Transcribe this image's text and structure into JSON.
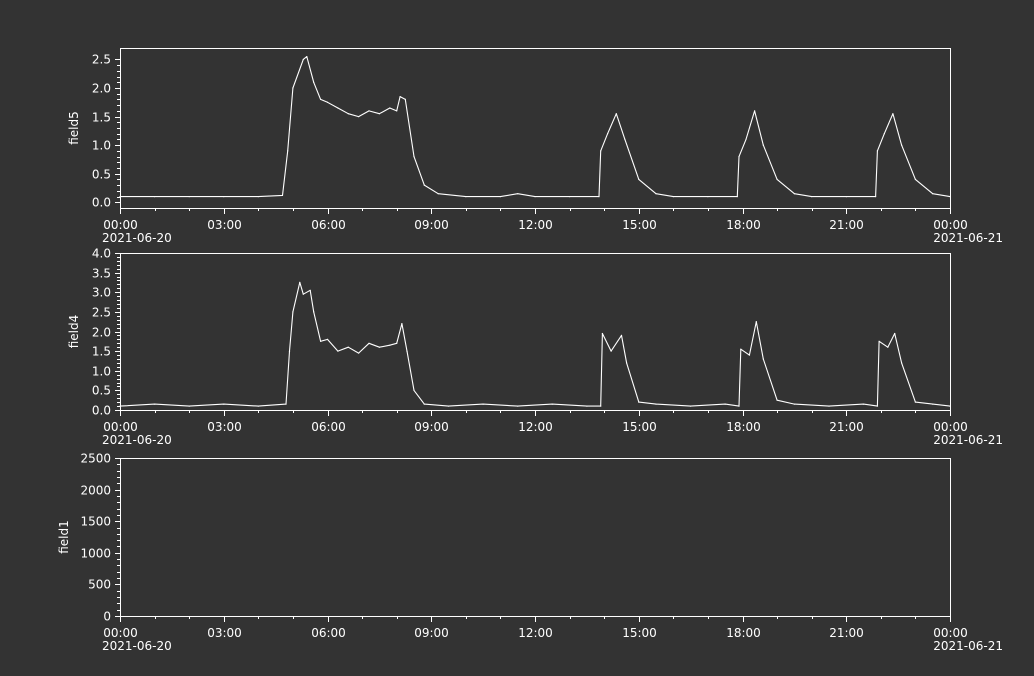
{
  "chart_data": [
    {
      "type": "line",
      "ylabel": "field5",
      "ylim": [
        -0.1,
        2.7
      ],
      "yticks": [
        "0.0",
        "0.5",
        "1.0",
        "1.5",
        "2.0",
        "2.5"
      ],
      "ytick_values": [
        0,
        0.5,
        1.0,
        1.5,
        2.0,
        2.5
      ],
      "xlim_hours": [
        0,
        24
      ],
      "xticks": [
        "00:00",
        "03:00",
        "06:00",
        "09:00",
        "12:00",
        "15:00",
        "18:00",
        "21:00",
        "00:00"
      ],
      "date_labels": {
        "start": "2021-06-20",
        "end": "2021-06-21"
      },
      "grid": false,
      "series": [
        {
          "x_hours": [
            0,
            1,
            2,
            3,
            4,
            4.7,
            4.85,
            5.0,
            5.3,
            5.4,
            5.6,
            5.8,
            6.0,
            6.3,
            6.6,
            6.9,
            7.2,
            7.5,
            7.8,
            8.0,
            8.1,
            8.25,
            8.5,
            8.8,
            9.2,
            10,
            11,
            11.5,
            12,
            13,
            13.85,
            13.9,
            14.1,
            14.35,
            14.6,
            15.0,
            15.5,
            16,
            17,
            17.85,
            17.9,
            18.1,
            18.35,
            18.6,
            19.0,
            19.5,
            20,
            21,
            21.85,
            21.9,
            22.1,
            22.35,
            22.6,
            23.0,
            23.5,
            24
          ],
          "values": [
            0.1,
            0.1,
            0.1,
            0.1,
            0.1,
            0.12,
            0.9,
            2.0,
            2.5,
            2.55,
            2.1,
            1.8,
            1.75,
            1.65,
            1.55,
            1.5,
            1.6,
            1.55,
            1.65,
            1.6,
            1.85,
            1.8,
            0.8,
            0.3,
            0.15,
            0.1,
            0.1,
            0.15,
            0.1,
            0.1,
            0.1,
            0.9,
            1.2,
            1.55,
            1.1,
            0.4,
            0.15,
            0.1,
            0.1,
            0.1,
            0.8,
            1.1,
            1.6,
            1.0,
            0.4,
            0.15,
            0.1,
            0.1,
            0.1,
            0.9,
            1.2,
            1.55,
            1.0,
            0.4,
            0.15,
            0.1
          ]
        }
      ]
    },
    {
      "type": "line",
      "ylabel": "field4",
      "ylim": [
        0,
        4.0
      ],
      "yticks": [
        "0.0",
        "0.5",
        "1.0",
        "1.5",
        "2.0",
        "2.5",
        "3.0",
        "3.5",
        "4.0"
      ],
      "ytick_values": [
        0,
        0.5,
        1.0,
        1.5,
        2.0,
        2.5,
        3.0,
        3.5,
        4.0
      ],
      "xlim_hours": [
        0,
        24
      ],
      "xticks": [
        "00:00",
        "03:00",
        "06:00",
        "09:00",
        "12:00",
        "15:00",
        "18:00",
        "21:00",
        "00:00"
      ],
      "date_labels": {
        "start": "2021-06-20",
        "end": "2021-06-21"
      },
      "grid": false,
      "series": [
        {
          "x_hours": [
            0,
            1,
            2,
            3,
            4,
            4.8,
            4.9,
            5.0,
            5.2,
            5.3,
            5.5,
            5.6,
            5.8,
            6.0,
            6.3,
            6.6,
            6.9,
            7.2,
            7.5,
            7.8,
            8.0,
            8.15,
            8.3,
            8.5,
            8.8,
            9.5,
            10.5,
            11.5,
            12.5,
            13.5,
            13.9,
            13.95,
            14.2,
            14.5,
            14.65,
            15.0,
            15.5,
            16.5,
            17.5,
            17.9,
            17.95,
            18.2,
            18.4,
            18.6,
            19.0,
            19.5,
            20.5,
            21.5,
            21.9,
            21.95,
            22.2,
            22.4,
            22.6,
            23.0,
            23.5,
            24
          ],
          "values": [
            0.1,
            0.15,
            0.1,
            0.15,
            0.1,
            0.15,
            1.5,
            2.5,
            3.25,
            2.95,
            3.05,
            2.5,
            1.75,
            1.8,
            1.5,
            1.6,
            1.45,
            1.7,
            1.6,
            1.65,
            1.7,
            2.2,
            1.5,
            0.5,
            0.15,
            0.1,
            0.15,
            0.1,
            0.15,
            0.1,
            0.1,
            1.95,
            1.5,
            1.9,
            1.2,
            0.2,
            0.15,
            0.1,
            0.15,
            0.1,
            1.55,
            1.4,
            2.25,
            1.3,
            0.25,
            0.15,
            0.1,
            0.15,
            0.1,
            1.75,
            1.6,
            1.95,
            1.2,
            0.2,
            0.15,
            0.1
          ]
        }
      ]
    },
    {
      "type": "line",
      "ylabel": "field1",
      "ylim": [
        0,
        2500
      ],
      "yticks": [
        "0",
        "500",
        "1000",
        "1500",
        "2000",
        "2500"
      ],
      "ytick_values": [
        0,
        500,
        1000,
        1500,
        2000,
        2500
      ],
      "xlim_hours": [
        0,
        24
      ],
      "xticks": [
        "00:00",
        "03:00",
        "06:00",
        "09:00",
        "12:00",
        "15:00",
        "18:00",
        "21:00",
        "00:00"
      ],
      "date_labels": {
        "start": "2021-06-20",
        "end": "2021-06-21"
      },
      "grid": false,
      "series": []
    }
  ]
}
